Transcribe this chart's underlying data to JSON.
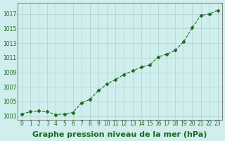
{
  "x": [
    0,
    1,
    2,
    3,
    4,
    5,
    6,
    7,
    8,
    9,
    10,
    11,
    12,
    13,
    14,
    15,
    16,
    17,
    18,
    19,
    20,
    21,
    22,
    23
  ],
  "y": [
    1003.3,
    1003.6,
    1003.7,
    1003.6,
    1003.2,
    1003.3,
    1003.5,
    1004.8,
    1005.3,
    1006.5,
    1007.4,
    1008.0,
    1008.7,
    1009.2,
    1009.7,
    1010.0,
    1011.1,
    1011.5,
    1012.0,
    1013.2,
    1015.1,
    1016.8,
    1017.0,
    1017.5
  ],
  "line_color": "#1a6b1a",
  "marker_color": "#1a6b1a",
  "bg_color": "#d0eeee",
  "grid_color": "#b0d0d0",
  "xlabel": "Graphe pression niveau de la mer (hPa)",
  "xlabel_fontsize": 8,
  "yticks": [
    1003,
    1005,
    1007,
    1009,
    1011,
    1013,
    1015,
    1017
  ],
  "xticks": [
    0,
    1,
    2,
    3,
    4,
    5,
    6,
    7,
    8,
    9,
    10,
    11,
    12,
    13,
    14,
    15,
    16,
    17,
    18,
    19,
    20,
    21,
    22,
    23
  ],
  "ylim": [
    1002.5,
    1018.5
  ],
  "xlim": [
    -0.5,
    23.5
  ]
}
